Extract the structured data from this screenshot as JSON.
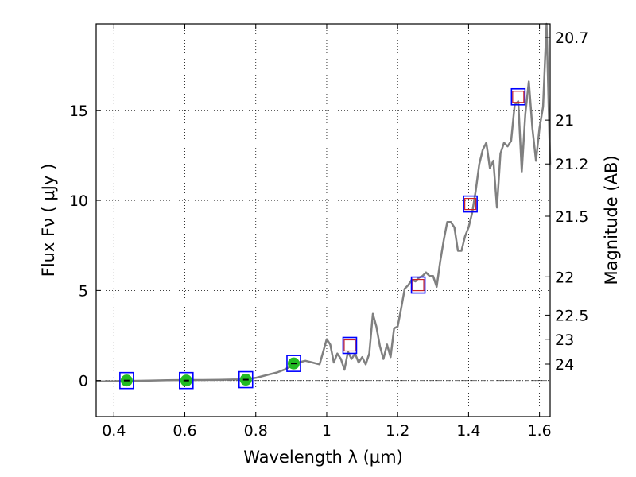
{
  "chart_data": {
    "type": "line",
    "xlabel": "Wavelength  λ (μm)",
    "ylabel": "Flux  Fν  ( μJy )",
    "y2label": "Magnitude (AB)",
    "xlim": [
      0.35,
      1.63
    ],
    "ylim": [
      -2.0,
      19.8
    ],
    "grid": true,
    "x_ticks": [
      0.4,
      0.6,
      0.8,
      1.0,
      1.2,
      1.4,
      1.6
    ],
    "x_tick_labels": [
      "0.4",
      "0.6",
      "0.8",
      "1",
      "1.2",
      "1.4",
      "1.6"
    ],
    "y_ticks": [
      0,
      5,
      10,
      15
    ],
    "y_tick_labels": [
      "0",
      "5",
      "10",
      "15"
    ],
    "mag_ticks": [
      20.7,
      21,
      21.2,
      21.5,
      22,
      22.5,
      23,
      24
    ],
    "mag_tick_labels": [
      "20.7",
      "21",
      "21.2",
      "21.5",
      "22",
      "22.5",
      "23",
      "24"
    ],
    "colors": {
      "model_line": "#808080",
      "observed_marker": "#22bb22",
      "model_box": "#0000ff",
      "predicted_box": "#cc2222",
      "zero_line": "#555555"
    },
    "series": [
      {
        "style": "line",
        "x": [
          0.35,
          0.4,
          0.45,
          0.5,
          0.55,
          0.6,
          0.65,
          0.7,
          0.75,
          0.78,
          0.8,
          0.82,
          0.84,
          0.86,
          0.88,
          0.9,
          0.92,
          0.94,
          0.96,
          0.98,
          1.0,
          1.01,
          1.02,
          1.03,
          1.04,
          1.05,
          1.06,
          1.07,
          1.08,
          1.09,
          1.1,
          1.11,
          1.12,
          1.13,
          1.14,
          1.15,
          1.16,
          1.17,
          1.18,
          1.19,
          1.2,
          1.21,
          1.22,
          1.23,
          1.24,
          1.25,
          1.26,
          1.27,
          1.28,
          1.29,
          1.3,
          1.31,
          1.32,
          1.33,
          1.34,
          1.35,
          1.36,
          1.37,
          1.38,
          1.39,
          1.4,
          1.41,
          1.42,
          1.43,
          1.44,
          1.45,
          1.46,
          1.47,
          1.48,
          1.49,
          1.5,
          1.51,
          1.52,
          1.53,
          1.54,
          1.55,
          1.56,
          1.57,
          1.58,
          1.59,
          1.6,
          1.61,
          1.62,
          1.63
        ],
        "y": [
          -0.05,
          -0.05,
          -0.02,
          0.0,
          0.02,
          0.03,
          0.03,
          0.04,
          0.06,
          0.1,
          0.15,
          0.25,
          0.35,
          0.45,
          0.6,
          0.8,
          1.0,
          1.1,
          1.0,
          0.9,
          2.3,
          2.0,
          1.0,
          1.5,
          1.2,
          0.6,
          1.6,
          1.2,
          1.5,
          1.0,
          1.3,
          0.9,
          1.5,
          3.7,
          3.0,
          1.9,
          1.2,
          2.0,
          1.3,
          2.9,
          3.0,
          4.0,
          5.1,
          5.3,
          5.6,
          5.5,
          5.7,
          5.8,
          6.0,
          5.8,
          5.8,
          5.2,
          6.6,
          7.8,
          8.8,
          8.8,
          8.5,
          7.2,
          7.2,
          8.0,
          8.5,
          9.3,
          10.5,
          12.0,
          12.8,
          13.2,
          11.8,
          12.2,
          9.6,
          12.6,
          13.2,
          13.0,
          13.3,
          15.3,
          15.5,
          11.6,
          14.8,
          16.6,
          14.0,
          12.2,
          14.0,
          15.2,
          19.8,
          12.0
        ]
      },
      {
        "style": "observed",
        "x": [
          0.436,
          0.604,
          0.772,
          0.907
        ],
        "y": [
          0.0,
          0.0,
          0.05,
          0.95
        ]
      },
      {
        "style": "model-box",
        "x": [
          0.436,
          0.604,
          0.772,
          0.907,
          1.065,
          1.258,
          1.405,
          1.54
        ],
        "y": [
          0.0,
          0.0,
          0.05,
          0.95,
          1.95,
          5.3,
          9.8,
          15.75
        ]
      },
      {
        "style": "predicted-box",
        "x": [
          1.065,
          1.258,
          1.405,
          1.54
        ],
        "y": [
          1.95,
          5.3,
          9.8,
          15.75
        ]
      }
    ]
  }
}
